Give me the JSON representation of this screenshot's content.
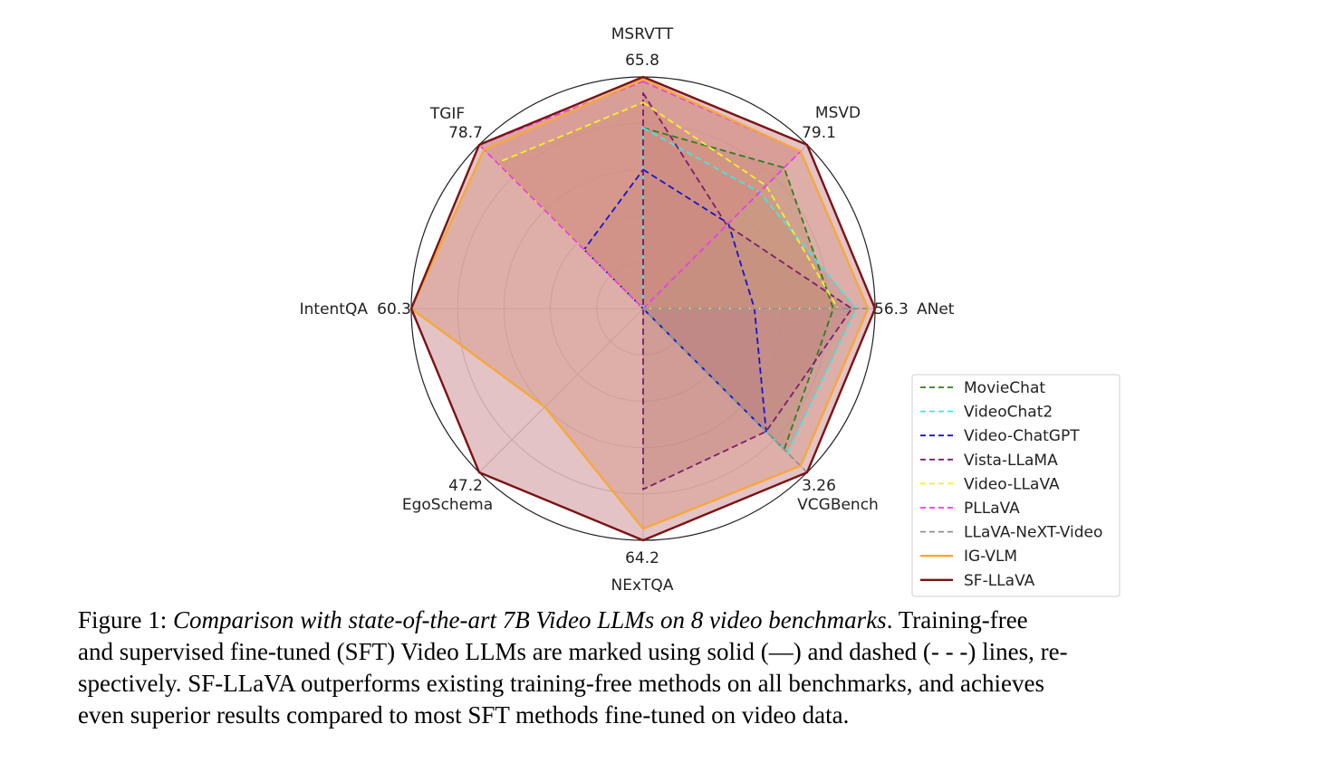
{
  "chart_data": {
    "type": "radar",
    "axes": [
      {
        "name": "MSRVTT",
        "max_label": "65.8"
      },
      {
        "name": "MSVD",
        "max_label": "79.1"
      },
      {
        "name": "ANet",
        "max_label": "56.3"
      },
      {
        "name": "VCGBench",
        "max_label": "3.26"
      },
      {
        "name": "NExTQA",
        "max_label": "64.2"
      },
      {
        "name": "EgoSchema",
        "max_label": "47.2"
      },
      {
        "name": "IntentQA",
        "max_label": "60.3"
      },
      {
        "name": "TGIF",
        "max_label": "78.7"
      }
    ],
    "scale": "normalized fraction of axis maximum (0-1)",
    "series": [
      {
        "name": "MovieChat",
        "style": "dashed",
        "color": "#2e7d1e",
        "filled": true,
        "fill": "#9a9a55",
        "values": [
          0.78,
          0.86,
          0.82,
          0.86,
          0.0,
          0.0,
          0.0,
          0.0
        ]
      },
      {
        "name": "VideoChat2",
        "style": "dashed",
        "color": "#3ee8e8",
        "filled": true,
        "fill": "#9a9a9a",
        "values": [
          0.78,
          0.71,
          0.92,
          0.88,
          0.0,
          0.0,
          0.0,
          0.0
        ]
      },
      {
        "name": "Video-ChatGPT",
        "style": "dashed",
        "color": "#1414d2",
        "filled": true,
        "fill": "#7a6a8a",
        "values": [
          0.6,
          0.52,
          0.48,
          0.75,
          0.0,
          0.0,
          0.0,
          0.36
        ]
      },
      {
        "name": "Vista-LLaMA",
        "style": "dashed",
        "color": "#7a1e6e",
        "filled": true,
        "fill": "#9a6a80",
        "values": [
          0.93,
          0.51,
          0.9,
          0.75,
          0.78,
          0.0,
          0.0,
          0.0
        ]
      },
      {
        "name": "Video-LLaVA",
        "style": "dashed",
        "color": "#f2f22a",
        "filled": true,
        "fill": "#c8b060",
        "values": [
          0.89,
          0.75,
          0.84,
          0.0,
          0.0,
          0.0,
          0.0,
          0.89
        ]
      },
      {
        "name": "PLLaVA",
        "style": "dashed",
        "color": "#e83ee8",
        "filled": true,
        "fill": "#e08090",
        "values": [
          0.98,
          0.96,
          0.0,
          0.0,
          0.0,
          0.0,
          0.0,
          1.0
        ]
      },
      {
        "name": "LLaVA-NeXT-Video",
        "style": "dashed",
        "color": "#909090",
        "filled": false,
        "values": [
          0.0,
          0.0,
          1.0,
          1.0,
          0.0,
          0.0,
          0.0,
          0.0
        ]
      },
      {
        "name": "IG-VLM",
        "style": "solid",
        "color": "#f5a83c",
        "filled": true,
        "fill": "#e8b080",
        "values": [
          0.99,
          0.96,
          0.97,
          0.96,
          0.95,
          0.6,
          1.0,
          0.97
        ]
      },
      {
        "name": "SF-LLaVA",
        "style": "solid",
        "color": "#7a1414",
        "filled": true,
        "fill": "#c47a82",
        "values": [
          1.0,
          1.0,
          1.0,
          1.0,
          1.0,
          1.0,
          1.0,
          1.0
        ]
      }
    ],
    "rlim": [
      0,
      1
    ],
    "grid": true,
    "legend_position": "bottom-right"
  },
  "caption": {
    "figure_label": "Figure 1:",
    "title_italic": "Comparison with state-of-the-art 7B Video LLMs on 8 video benchmarks",
    "body_line1": ". Training-free",
    "line2": "and supervised fine-tuned (SFT) Video LLMs are marked using solid (—) and dashed (- - -) lines, re-",
    "line3": "spectively. SF-LLaVA outperforms existing training-free methods on all benchmarks, and achieves",
    "line4": "even superior results compared to most SFT methods fine-tuned on video data."
  }
}
